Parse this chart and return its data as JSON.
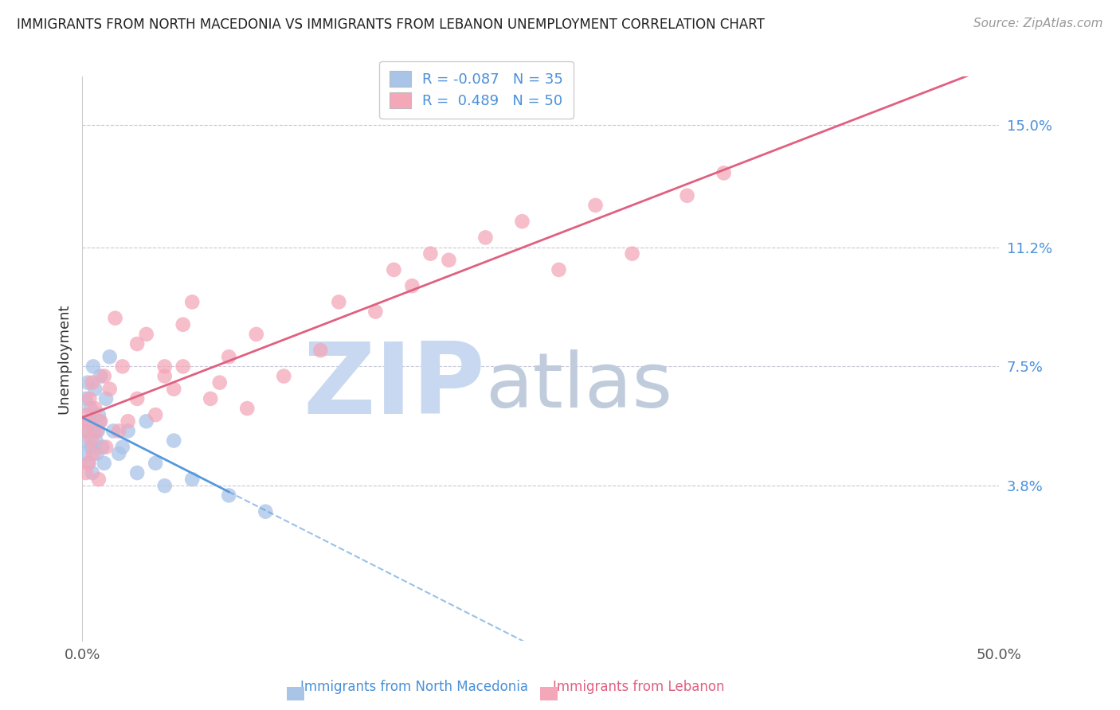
{
  "title": "IMMIGRANTS FROM NORTH MACEDONIA VS IMMIGRANTS FROM LEBANON UNEMPLOYMENT CORRELATION CHART",
  "source": "Source: ZipAtlas.com",
  "ylabel": "Unemployment",
  "yticks": [
    3.8,
    7.5,
    11.2,
    15.0
  ],
  "ytick_labels": [
    "3.8%",
    "7.5%",
    "11.2%",
    "15.0%"
  ],
  "xlim": [
    0.0,
    50.0
  ],
  "ylim": [
    -1.0,
    16.5
  ],
  "legend": [
    {
      "label": "R = -0.087   N = 35",
      "color": "#aac4e8"
    },
    {
      "label": "R =  0.489   N = 50",
      "color": "#f4a7b9"
    }
  ],
  "north_macedonia": {
    "color": "#aac4e8",
    "line_color": "#5599dd",
    "x": [
      0.1,
      0.15,
      0.2,
      0.25,
      0.3,
      0.35,
      0.4,
      0.45,
      0.5,
      0.55,
      0.6,
      0.65,
      0.7,
      0.75,
      0.8,
      0.85,
      0.9,
      0.95,
      1.0,
      1.1,
      1.2,
      1.3,
      1.5,
      1.7,
      2.0,
      2.2,
      2.5,
      3.0,
      3.5,
      4.0,
      4.5,
      5.0,
      6.0,
      8.0,
      10.0
    ],
    "y": [
      5.2,
      4.8,
      6.5,
      5.5,
      7.0,
      4.5,
      5.8,
      6.2,
      5.0,
      4.2,
      7.5,
      5.5,
      6.8,
      5.2,
      4.8,
      5.5,
      6.0,
      5.8,
      7.2,
      5.0,
      4.5,
      6.5,
      7.8,
      5.5,
      4.8,
      5.0,
      5.5,
      4.2,
      5.8,
      4.5,
      3.8,
      5.2,
      4.0,
      3.5,
      3.0
    ]
  },
  "lebanon": {
    "color": "#f4a7b9",
    "line_color": "#e06080",
    "x": [
      0.15,
      0.2,
      0.25,
      0.3,
      0.35,
      0.4,
      0.5,
      0.55,
      0.6,
      0.7,
      0.8,
      0.9,
      1.0,
      1.2,
      1.3,
      1.5,
      1.8,
      2.0,
      2.2,
      2.5,
      3.0,
      3.5,
      4.0,
      4.5,
      5.0,
      5.5,
      6.0,
      7.0,
      8.0,
      9.0,
      3.0,
      4.5,
      5.5,
      7.5,
      9.5,
      11.0,
      13.0,
      14.0,
      16.0,
      17.0,
      18.0,
      19.0,
      20.0,
      22.0,
      24.0,
      26.0,
      28.0,
      30.0,
      33.0,
      35.0
    ],
    "y": [
      5.5,
      4.2,
      6.0,
      5.8,
      4.5,
      6.5,
      5.2,
      7.0,
      4.8,
      6.2,
      5.5,
      4.0,
      5.8,
      7.2,
      5.0,
      6.8,
      9.0,
      5.5,
      7.5,
      5.8,
      6.5,
      8.5,
      6.0,
      7.2,
      6.8,
      7.5,
      9.5,
      6.5,
      7.8,
      6.2,
      8.2,
      7.5,
      8.8,
      7.0,
      8.5,
      7.2,
      8.0,
      9.5,
      9.2,
      10.5,
      10.0,
      11.0,
      10.8,
      11.5,
      12.0,
      10.5,
      12.5,
      11.0,
      12.8,
      13.5
    ]
  },
  "background_color": "#ffffff",
  "grid_color": "#c8c8d8",
  "watermark_zip": "ZIP",
  "watermark_atlas": "atlas",
  "watermark_color_zip": "#c8d8f0",
  "watermark_color_atlas": "#c0ccdc"
}
